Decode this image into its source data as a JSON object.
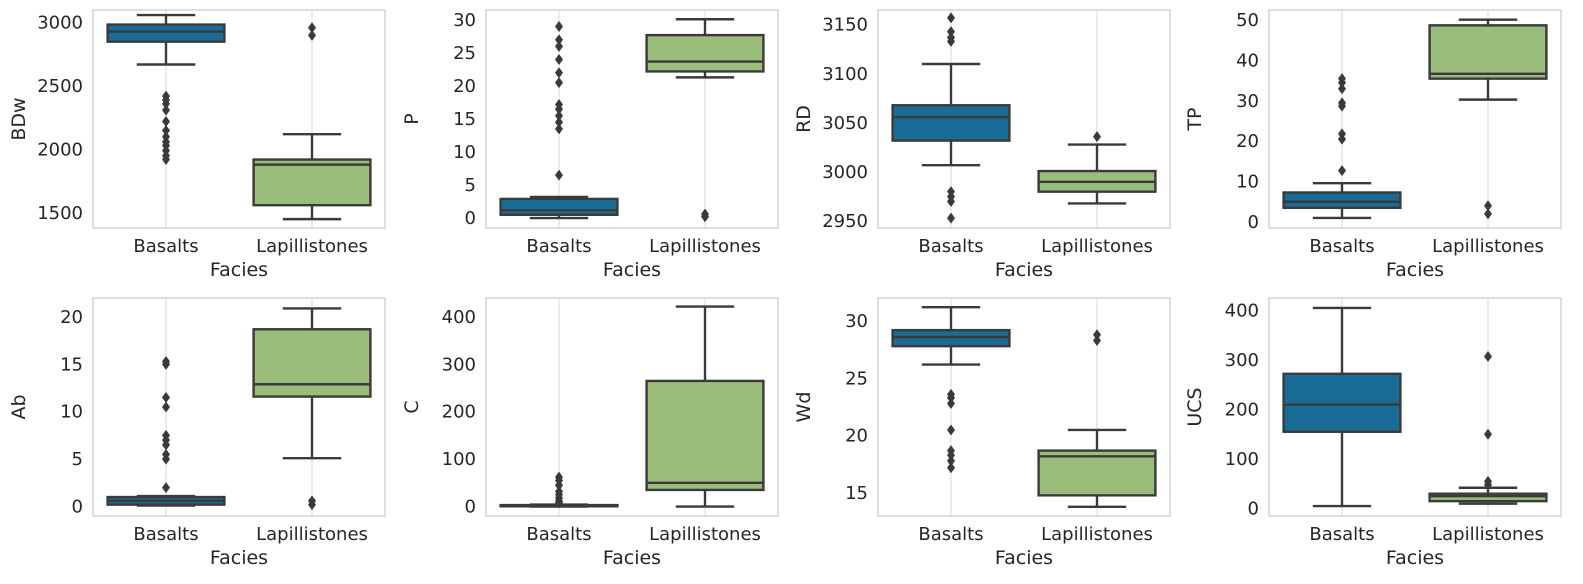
{
  "chart_data": [
    {
      "type": "box",
      "xlabel": "Facies",
      "ylabel": "BDw",
      "categories": [
        "Basalts",
        "Lapillistones"
      ],
      "ylim": [
        1380,
        3100
      ],
      "yticks": [
        1500,
        2000,
        2500,
        3000
      ],
      "series": [
        {
          "category": "Basalts",
          "color": "#186c96",
          "whislo": 2670,
          "q1": 2850,
          "med": 2930,
          "q3": 2985,
          "whishi": 3060,
          "fliers": [
            1920,
            1950,
            1990,
            2030,
            2060,
            2100,
            2150,
            2220,
            2310,
            2360,
            2390,
            2420
          ]
        },
        {
          "category": "Lapillistones",
          "color": "#9bbd7c",
          "whislo": 1450,
          "q1": 1560,
          "med": 1880,
          "q3": 1920,
          "whishi": 2120,
          "fliers": [
            2900,
            2960
          ]
        }
      ]
    },
    {
      "type": "box",
      "xlabel": "Facies",
      "ylabel": "P",
      "categories": [
        "Basalts",
        "Lapillistones"
      ],
      "ylim": [
        -1.5,
        31.5
      ],
      "yticks": [
        0,
        5,
        10,
        15,
        20,
        25,
        30
      ],
      "series": [
        {
          "category": "Basalts",
          "color": "#186c96",
          "whislo": 0,
          "q1": 0.5,
          "med": 1.2,
          "q3": 2.9,
          "whishi": 3.2,
          "fliers": [
            6.5,
            13.5,
            14.5,
            15.5,
            16.5,
            17.2,
            20.5,
            22,
            24,
            26,
            27,
            29
          ]
        },
        {
          "category": "Lapillistones",
          "color": "#9bbd7c",
          "whislo": 21.3,
          "q1": 22.2,
          "med": 23.7,
          "q3": 27.7,
          "whishi": 30.1,
          "fliers": [
            0.2,
            0.6
          ]
        }
      ]
    },
    {
      "type": "box",
      "xlabel": "Facies",
      "ylabel": "RD",
      "categories": [
        "Basalts",
        "Lapillistones"
      ],
      "ylim": [
        2943,
        3165
      ],
      "yticks": [
        2950,
        3000,
        3050,
        3100,
        3150
      ],
      "series": [
        {
          "category": "Basalts",
          "color": "#186c96",
          "whislo": 3007,
          "q1": 3032,
          "med": 3056,
          "q3": 3068,
          "whishi": 3110,
          "fliers": [
            2953,
            2970,
            2975,
            2980,
            3133,
            3137,
            3143,
            3157
          ]
        },
        {
          "category": "Lapillistones",
          "color": "#9bbd7c",
          "whislo": 2968,
          "q1": 2980,
          "med": 2990,
          "q3": 3001,
          "whishi": 3028,
          "fliers": [
            3036
          ]
        }
      ]
    },
    {
      "type": "box",
      "xlabel": "Facies",
      "ylabel": "TP",
      "categories": [
        "Basalts",
        "Lapillistones"
      ],
      "ylim": [
        -1.5,
        52.5
      ],
      "yticks": [
        0,
        10,
        20,
        30,
        40,
        50
      ],
      "series": [
        {
          "category": "Basalts",
          "color": "#186c96",
          "whislo": 1,
          "q1": 3.5,
          "med": 5,
          "q3": 7.3,
          "whishi": 9.6,
          "fliers": [
            12.7,
            20.5,
            21.8,
            28.7,
            29.5,
            33,
            34.5,
            35.5
          ]
        },
        {
          "category": "Lapillistones",
          "color": "#9bbd7c",
          "whislo": 30.3,
          "q1": 35.5,
          "med": 36.7,
          "q3": 48.7,
          "whishi": 50.1,
          "fliers": [
            2,
            4
          ]
        }
      ]
    },
    {
      "type": "box",
      "xlabel": "Facies",
      "ylabel": "Ab",
      "categories": [
        "Basalts",
        "Lapillistones"
      ],
      "ylim": [
        -1,
        22
      ],
      "yticks": [
        0,
        5,
        10,
        15,
        20
      ],
      "series": [
        {
          "category": "Basalts",
          "color": "#186c96",
          "whislo": 0.1,
          "q1": 0.2,
          "med": 0.6,
          "q3": 1.0,
          "whishi": 1.1,
          "fliers": [
            2,
            5,
            5.5,
            6.5,
            7,
            7.5,
            10.5,
            11.5,
            15,
            15.3
          ]
        },
        {
          "category": "Lapillistones",
          "color": "#9bbd7c",
          "whislo": 5.1,
          "q1": 11.6,
          "med": 12.9,
          "q3": 18.7,
          "whishi": 20.9,
          "fliers": [
            0.2,
            0.6
          ]
        }
      ]
    },
    {
      "type": "box",
      "xlabel": "Facies",
      "ylabel": "C",
      "categories": [
        "Basalts",
        "Lapillistones"
      ],
      "ylim": [
        -20,
        440
      ],
      "yticks": [
        0,
        100,
        200,
        300,
        400
      ],
      "series": [
        {
          "category": "Basalts",
          "color": "#186c96",
          "whislo": 0,
          "q1": 0.5,
          "med": 1.5,
          "q3": 3,
          "whishi": 4,
          "fliers": [
            8,
            12,
            18,
            25,
            32,
            45,
            55,
            62
          ]
        },
        {
          "category": "Lapillistones",
          "color": "#9bbd7c",
          "whislo": 0,
          "q1": 35,
          "med": 50,
          "q3": 265,
          "whishi": 422,
          "fliers": []
        }
      ]
    },
    {
      "type": "box",
      "xlabel": "Facies",
      "ylabel": "Wd",
      "categories": [
        "Basalts",
        "Lapillistones"
      ],
      "ylim": [
        13,
        32
      ],
      "yticks": [
        15,
        20,
        25,
        30
      ],
      "series": [
        {
          "category": "Basalts",
          "color": "#186c96",
          "whislo": 26.2,
          "q1": 27.8,
          "med": 28.6,
          "q3": 29.2,
          "whishi": 31.2,
          "fliers": [
            17.2,
            17.8,
            18.3,
            18.7,
            20.5,
            22.8,
            23.3,
            23.6
          ]
        },
        {
          "category": "Lapillistones",
          "color": "#9bbd7c",
          "whislo": 13.8,
          "q1": 14.8,
          "med": 18.2,
          "q3": 18.7,
          "whishi": 20.5,
          "fliers": [
            28.3,
            28.8
          ]
        }
      ]
    },
    {
      "type": "box",
      "xlabel": "Facies",
      "ylabel": "UCS",
      "categories": [
        "Basalts",
        "Lapillistones"
      ],
      "ylim": [
        -15,
        425
      ],
      "yticks": [
        0,
        100,
        200,
        300,
        400
      ],
      "series": [
        {
          "category": "Basalts",
          "color": "#186c96",
          "whislo": 5,
          "q1": 155,
          "med": 210,
          "q3": 272,
          "whishi": 405,
          "fliers": []
        },
        {
          "category": "Lapillistones",
          "color": "#9bbd7c",
          "whislo": 10,
          "q1": 15,
          "med": 25,
          "q3": 30,
          "whishi": 42,
          "fliers": [
            48,
            55,
            150,
            307
          ]
        }
      ]
    }
  ]
}
